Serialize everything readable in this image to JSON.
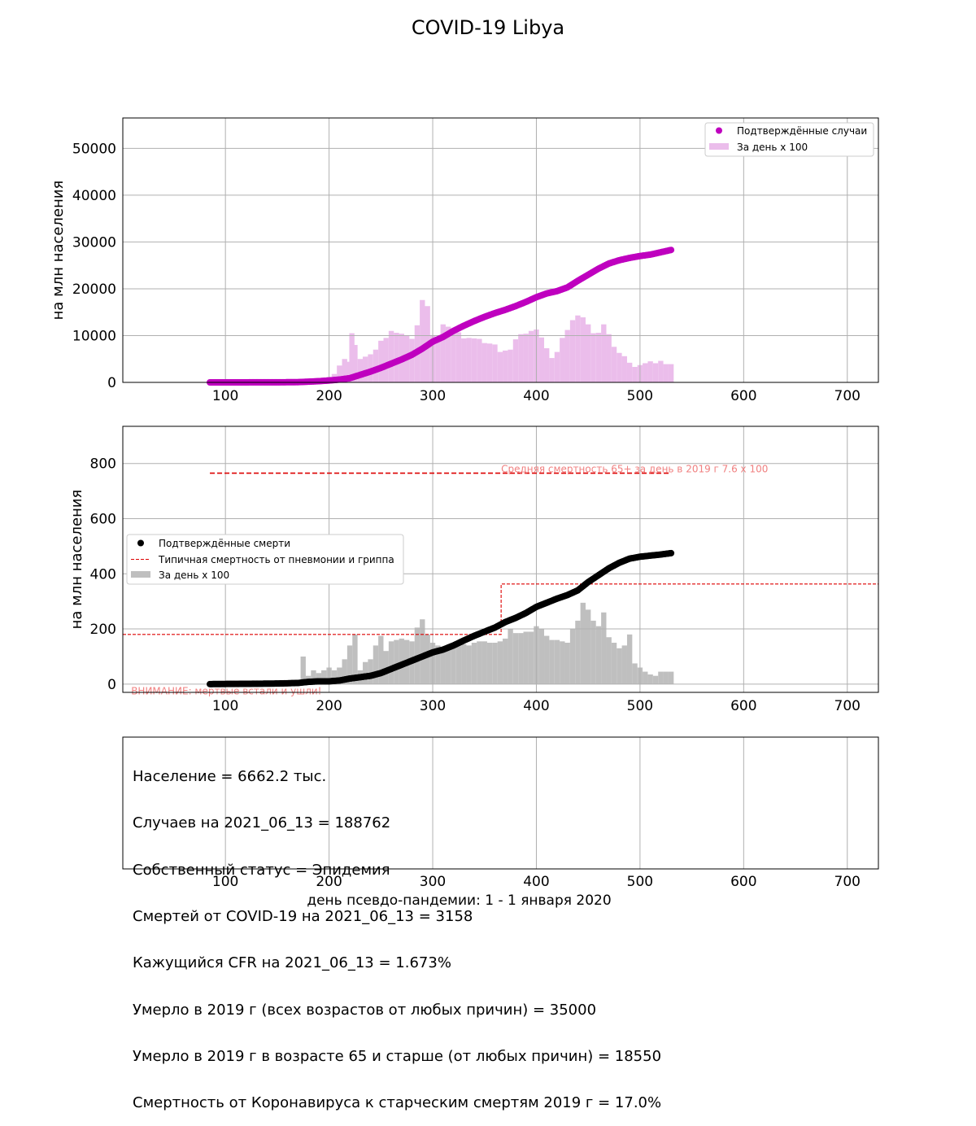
{
  "title": "COVID-19 Libya",
  "xlabel": "день псевдо-пандемии: 1 - 1 января 2020",
  "colors": {
    "cases": "#bf00bf",
    "cases_bars": "#ebbdeb",
    "deaths": "#000000",
    "deaths_bars": "#bfbfbf",
    "reference": "#dd0000",
    "note": "#f08080",
    "grid": "#b0b0b0"
  },
  "info": {
    "lines": [
      "Население = 6662.2 тыс.",
      "Случаев на 2021_06_13 = 188762",
      "Собственный статус = Эпидемия",
      "Смертей от COVID-19 на 2021_06_13 = 3158",
      "Кажущийся CFR на 2021_06_13 = 1.673%",
      "Умерло в 2019 г (всех возрастов от любых причин) = 35000",
      "Умерло в 2019 г в возрасте 65 и старше (от любых причин) = 18550",
      "Смертность от Коронавируса к старческим смертям 2019 г = 17.0%"
    ]
  },
  "chart_data": [
    {
      "type": "line",
      "ylabel": "на млн населения",
      "xlim": [
        1,
        730
      ],
      "ylim": [
        0,
        56500
      ],
      "xticks": [
        100,
        200,
        300,
        400,
        500,
        600,
        700
      ],
      "yticks": [
        0,
        10000,
        20000,
        30000,
        40000,
        50000
      ],
      "grid": true,
      "legend": {
        "placement": "top-right",
        "entries": [
          "Подтверждённые случаи",
          "За день x 100"
        ]
      },
      "series": [
        {
          "name": "Подтверждённые случаи",
          "style": "markers",
          "points": [
            [
              85,
              0
            ],
            [
              120,
              10
            ],
            [
              150,
              20
            ],
            [
              170,
              50
            ],
            [
              180,
              150
            ],
            [
              190,
              250
            ],
            [
              200,
              400
            ],
            [
              210,
              600
            ],
            [
              220,
              900
            ],
            [
              230,
              1600
            ],
            [
              240,
              2300
            ],
            [
              250,
              3100
            ],
            [
              260,
              4000
            ],
            [
              270,
              4900
            ],
            [
              280,
              5900
            ],
            [
              290,
              7200
            ],
            [
              300,
              8700
            ],
            [
              310,
              9700
            ],
            [
              320,
              11000
            ],
            [
              330,
              12100
            ],
            [
              340,
              13100
            ],
            [
              350,
              14000
            ],
            [
              360,
              14800
            ],
            [
              370,
              15500
            ],
            [
              380,
              16300
            ],
            [
              390,
              17200
            ],
            [
              400,
              18200
            ],
            [
              410,
              19000
            ],
            [
              420,
              19500
            ],
            [
              430,
              20300
            ],
            [
              440,
              21700
            ],
            [
              450,
              23000
            ],
            [
              460,
              24300
            ],
            [
              470,
              25400
            ],
            [
              480,
              26100
            ],
            [
              490,
              26600
            ],
            [
              500,
              27000
            ],
            [
              510,
              27300
            ],
            [
              520,
              27800
            ],
            [
              530,
              28300
            ]
          ]
        },
        {
          "name": "За день x 100",
          "style": "bars",
          "bars": [
            [
              185,
              500
            ],
            [
              190,
              800
            ],
            [
              195,
              1000
            ],
            [
              200,
              1200
            ],
            [
              205,
              1800
            ],
            [
              210,
              3600
            ],
            [
              215,
              5000
            ],
            [
              218,
              4400
            ],
            [
              222,
              10500
            ],
            [
              225,
              8000
            ],
            [
              230,
              5000
            ],
            [
              235,
              5500
            ],
            [
              240,
              6000
            ],
            [
              245,
              7000
            ],
            [
              250,
              8900
            ],
            [
              255,
              9500
            ],
            [
              260,
              11000
            ],
            [
              265,
              10600
            ],
            [
              270,
              10400
            ],
            [
              275,
              10000
            ],
            [
              280,
              9300
            ],
            [
              285,
              12200
            ],
            [
              290,
              17600
            ],
            [
              295,
              16300
            ],
            [
              300,
              10100
            ],
            [
              305,
              9500
            ],
            [
              310,
              12400
            ],
            [
              315,
              11900
            ],
            [
              320,
              11500
            ],
            [
              325,
              10700
            ],
            [
              330,
              9400
            ],
            [
              335,
              9500
            ],
            [
              340,
              9400
            ],
            [
              345,
              9300
            ],
            [
              350,
              8400
            ],
            [
              355,
              8300
            ],
            [
              360,
              8100
            ],
            [
              365,
              6500
            ],
            [
              370,
              6800
            ],
            [
              375,
              7000
            ],
            [
              380,
              9200
            ],
            [
              385,
              10300
            ],
            [
              390,
              10400
            ],
            [
              395,
              11000
            ],
            [
              400,
              11300
            ],
            [
              405,
              9600
            ],
            [
              410,
              7300
            ],
            [
              415,
              5200
            ],
            [
              420,
              6500
            ],
            [
              425,
              9500
            ],
            [
              430,
              11200
            ],
            [
              435,
              13300
            ],
            [
              440,
              14300
            ],
            [
              445,
              13900
            ],
            [
              450,
              12400
            ],
            [
              455,
              10500
            ],
            [
              460,
              10600
            ],
            [
              465,
              12400
            ],
            [
              470,
              10300
            ],
            [
              475,
              7600
            ],
            [
              480,
              6300
            ],
            [
              485,
              5600
            ],
            [
              490,
              4200
            ],
            [
              495,
              3300
            ],
            [
              500,
              3700
            ],
            [
              505,
              4100
            ],
            [
              510,
              4500
            ],
            [
              515,
              4100
            ],
            [
              520,
              4600
            ],
            [
              525,
              3900
            ],
            [
              530,
              3900
            ]
          ]
        }
      ]
    },
    {
      "type": "line",
      "ylabel": "на млн населения",
      "xlim": [
        1,
        730
      ],
      "ylim": [
        -30,
        935
      ],
      "xticks": [
        100,
        200,
        300,
        400,
        500,
        600,
        700
      ],
      "yticks": [
        0,
        200,
        400,
        600,
        800
      ],
      "grid": true,
      "legend": {
        "placement": "center-left",
        "entries": [
          "Подтверждённые смерти",
          "Типичная смертность от пневмонии и гриппа",
          "За день x 100"
        ]
      },
      "annotations": [
        {
          "text": "Средняя смертность 65+ за день в 2019 г 7.6 x 100",
          "x": 366,
          "y": 768
        },
        {
          "text": "ВНИМАНИЕ: мертвые встали и ушли!",
          "x": 9,
          "y": -25
        }
      ],
      "series": [
        {
          "name": "Подтверждённые смерти",
          "style": "markers",
          "points": [
            [
              85,
              0
            ],
            [
              120,
              1
            ],
            [
              150,
              2
            ],
            [
              170,
              4
            ],
            [
              180,
              8
            ],
            [
              190,
              10
            ],
            [
              200,
              10
            ],
            [
              210,
              13
            ],
            [
              220,
              20
            ],
            [
              230,
              25
            ],
            [
              240,
              30
            ],
            [
              250,
              40
            ],
            [
              260,
              55
            ],
            [
              270,
              70
            ],
            [
              280,
              85
            ],
            [
              290,
              100
            ],
            [
              300,
              115
            ],
            [
              310,
              125
            ],
            [
              320,
              140
            ],
            [
              330,
              158
            ],
            [
              340,
              175
            ],
            [
              350,
              190
            ],
            [
              360,
              205
            ],
            [
              370,
              225
            ],
            [
              380,
              240
            ],
            [
              390,
              258
            ],
            [
              400,
              280
            ],
            [
              410,
              295
            ],
            [
              420,
              310
            ],
            [
              430,
              323
            ],
            [
              440,
              340
            ],
            [
              450,
              370
            ],
            [
              460,
              395
            ],
            [
              470,
              420
            ],
            [
              480,
              440
            ],
            [
              490,
              455
            ],
            [
              500,
              462
            ],
            [
              510,
              466
            ],
            [
              520,
              470
            ],
            [
              530,
              475
            ]
          ]
        },
        {
          "name": "Типичная смертность от пневмонии и гриппа",
          "style": "dashed-step",
          "segments": [
            [
              1,
              180
            ],
            [
              366,
              180
            ],
            [
              366,
              363
            ],
            [
              730,
              363
            ]
          ]
        },
        {
          "name": "Средняя смертность 65+ за день в 2019 г 7.6 x 100",
          "style": "dashed",
          "segments": [
            [
              85,
              765
            ],
            [
              530,
              765
            ]
          ]
        },
        {
          "name": "За день x 100",
          "style": "bars",
          "bars": [
            [
              175,
              100
            ],
            [
              180,
              30
            ],
            [
              185,
              50
            ],
            [
              190,
              40
            ],
            [
              195,
              50
            ],
            [
              200,
              60
            ],
            [
              205,
              50
            ],
            [
              210,
              60
            ],
            [
              215,
              90
            ],
            [
              220,
              140
            ],
            [
              225,
              180
            ],
            [
              230,
              50
            ],
            [
              235,
              80
            ],
            [
              240,
              90
            ],
            [
              245,
              140
            ],
            [
              250,
              175
            ],
            [
              255,
              120
            ],
            [
              260,
              155
            ],
            [
              265,
              160
            ],
            [
              270,
              165
            ],
            [
              275,
              160
            ],
            [
              280,
              155
            ],
            [
              285,
              205
            ],
            [
              290,
              235
            ],
            [
              295,
              180
            ],
            [
              300,
              150
            ],
            [
              305,
              140
            ],
            [
              310,
              130
            ],
            [
              315,
              130
            ],
            [
              320,
              140
            ],
            [
              325,
              150
            ],
            [
              330,
              145
            ],
            [
              335,
              140
            ],
            [
              340,
              150
            ],
            [
              345,
              155
            ],
            [
              350,
              155
            ],
            [
              355,
              150
            ],
            [
              360,
              150
            ],
            [
              365,
              155
            ],
            [
              370,
              165
            ],
            [
              375,
              200
            ],
            [
              380,
              185
            ],
            [
              385,
              185
            ],
            [
              390,
              190
            ],
            [
              395,
              190
            ],
            [
              400,
              210
            ],
            [
              405,
              200
            ],
            [
              410,
              175
            ],
            [
              415,
              160
            ],
            [
              420,
              160
            ],
            [
              425,
              155
            ],
            [
              430,
              150
            ],
            [
              435,
              200
            ],
            [
              440,
              230
            ],
            [
              445,
              295
            ],
            [
              450,
              270
            ],
            [
              455,
              230
            ],
            [
              460,
              210
            ],
            [
              465,
              260
            ],
            [
              470,
              170
            ],
            [
              475,
              150
            ],
            [
              480,
              130
            ],
            [
              485,
              140
            ],
            [
              490,
              180
            ],
            [
              495,
              75
            ],
            [
              500,
              60
            ],
            [
              505,
              45
            ],
            [
              510,
              35
            ],
            [
              515,
              30
            ],
            [
              520,
              45
            ],
            [
              525,
              45
            ],
            [
              530,
              45
            ]
          ]
        }
      ]
    }
  ]
}
